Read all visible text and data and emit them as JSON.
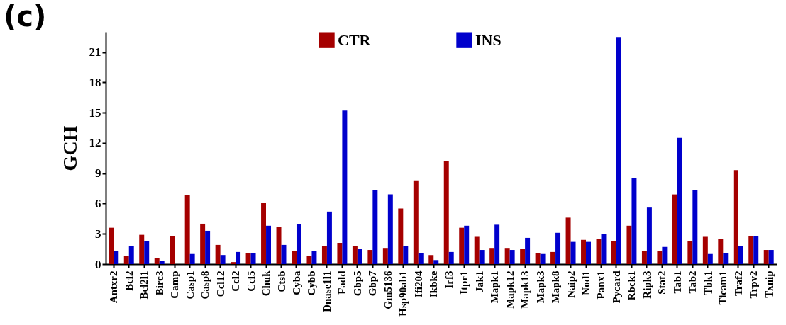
{
  "chart_data": {
    "type": "bar",
    "title": "(c)",
    "ylabel": "GCH",
    "categories": [
      "Antxr2",
      "Bcl2",
      "Bcl2l1",
      "Birc3",
      "Camp",
      "Casp1",
      "Casp8",
      "Ccl12",
      "Ccl2",
      "Ccl5",
      "Chuk",
      "Ctsb",
      "Cyba",
      "Cybb",
      "Dnase1l1",
      "Fadd",
      "Gbp5",
      "Gbp7",
      "Gm5136",
      "Hsp90ab1",
      "Ifi204",
      "Ikbke",
      "Irf3",
      "Itpr1",
      "Jak1",
      "Mapk1",
      "Mapk12",
      "Mapk13",
      "Mapk3",
      "Mapk8",
      "Naip2",
      "Nod1",
      "Panx1",
      "Pycard",
      "Rbck1",
      "Ripk3",
      "Stat2",
      "Tab1",
      "Tab2",
      "Tbk1",
      "Ticam1",
      "Traf2",
      "Trpv2",
      "Txnip"
    ],
    "series": [
      {
        "name": "CTR",
        "color": "#a50000",
        "values": [
          3.6,
          0.8,
          2.9,
          0.6,
          2.8,
          6.8,
          4.0,
          1.9,
          0.2,
          1.1,
          6.1,
          3.7,
          1.3,
          0.8,
          1.8,
          2.1,
          1.8,
          1.4,
          1.6,
          5.5,
          8.3,
          0.9,
          10.2,
          3.6,
          2.7,
          1.6,
          1.6,
          1.5,
          1.1,
          1.2,
          4.6,
          2.4,
          2.5,
          2.3,
          3.8,
          1.3,
          1.3,
          6.9,
          2.3,
          2.7,
          2.5,
          9.3,
          2.8,
          1.4
        ]
      },
      {
        "name": "INS",
        "color": "#0000cc",
        "values": [
          1.3,
          1.8,
          2.3,
          0.3,
          0,
          1.0,
          3.3,
          0.9,
          1.2,
          1.1,
          3.8,
          1.9,
          4.0,
          1.3,
          5.2,
          15.2,
          1.5,
          7.3,
          6.9,
          1.8,
          1.1,
          0.4,
          1.2,
          3.8,
          1.4,
          3.9,
          1.4,
          2.6,
          1.0,
          3.1,
          2.2,
          2.2,
          3.0,
          22.5,
          8.5,
          5.6,
          1.7,
          12.5,
          7.3,
          1.0,
          1.1,
          1.8,
          2.8,
          1.4
        ]
      }
    ],
    "ylim": [
      0,
      23
    ],
    "yticks": [
      0,
      3,
      6,
      9,
      12,
      15,
      18,
      21
    ],
    "grid": false,
    "legend": "top"
  }
}
